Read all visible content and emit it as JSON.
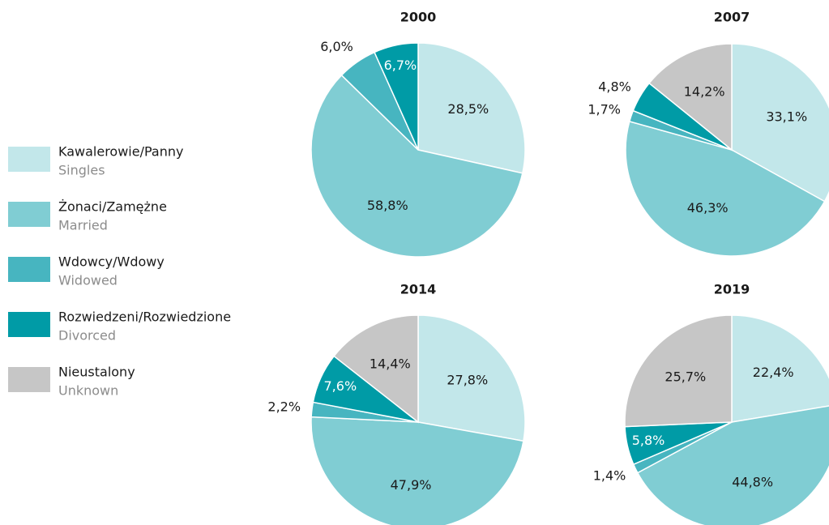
{
  "legend": [
    {
      "label": "Kawalerowie/Panny",
      "sublabel": "Singles",
      "color": "#c2e7ea"
    },
    {
      "label": "Żonaci/Zamężne",
      "sublabel": "Married",
      "color": "#80cdd3"
    },
    {
      "label": "Wdowcy/Wdowy",
      "sublabel": "Widowed",
      "color": "#47b5c0"
    },
    {
      "label": "Rozwiedzeni/Rozwiedzione",
      "sublabel": "Divorced",
      "color": "#009ba6"
    },
    {
      "label": "Nieustalony",
      "sublabel": "Unknown",
      "color": "#c6c6c6"
    }
  ],
  "chart_data": [
    {
      "type": "pie",
      "title": "2000",
      "values": [
        28.5,
        58.8,
        6.0,
        6.7
      ],
      "value_labels": [
        "28,5%",
        "58,8%",
        "6,0%",
        "6,7%"
      ]
    },
    {
      "type": "pie",
      "title": "2007",
      "values": [
        33.1,
        46.3,
        1.7,
        4.8,
        14.2
      ],
      "value_labels": [
        "33,1%",
        "46,3%",
        "1,7%",
        "4,8%",
        "14,2%"
      ]
    },
    {
      "type": "pie",
      "title": "2014",
      "values": [
        27.8,
        47.9,
        2.2,
        7.6,
        14.4
      ],
      "value_labels": [
        "27,8%",
        "47,9%",
        "2,2%",
        "7,6%",
        "14,4%"
      ]
    },
    {
      "type": "pie",
      "title": "2019",
      "values": [
        22.4,
        44.8,
        1.4,
        5.8,
        25.7
      ],
      "value_labels": [
        "22,4%",
        "44,8%",
        "1,4%",
        "5,8%",
        "25,7%"
      ]
    }
  ]
}
